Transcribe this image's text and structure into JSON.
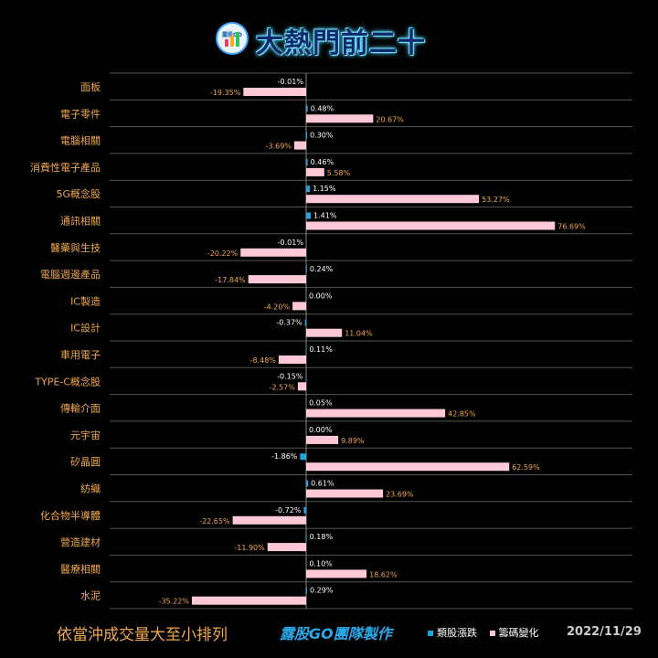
{
  "header": {
    "title": "大熱門前二十",
    "logo_text": "露股GO"
  },
  "footer": {
    "note": "依當沖成交量大至小排列",
    "credit": "露股GO團隊製作",
    "date": "2022/11/29"
  },
  "colors": {
    "series1": "#1ea8e0",
    "series2": "#ffc8d6",
    "label1": "#ffffff",
    "label2": "#f0a850",
    "grid": "#555555"
  },
  "chart_data": {
    "type": "bar",
    "orientation": "horizontal",
    "categories": [
      "面板",
      "電子零件",
      "電腦相關",
      "消費性電子產品",
      "5G概念股",
      "通訊相關",
      "醫藥與生技",
      "電腦週邊產品",
      "IC製造",
      "IC設計",
      "車用電子",
      "TYPE-C概念股",
      "傳輸介面",
      "元宇宙",
      "矽晶圓",
      "紡織",
      "化合物半導體",
      "營造建材",
      "醫療相關",
      "水泥"
    ],
    "series": [
      {
        "name": "類股漲跌",
        "values": [
          -0.01,
          0.48,
          0.3,
          0.46,
          1.15,
          1.41,
          -0.01,
          0.24,
          0.0,
          -0.37,
          0.11,
          -0.15,
          0.05,
          0.0,
          -1.86,
          0.61,
          -0.72,
          0.18,
          0.1,
          0.29
        ]
      },
      {
        "name": "籌碼變化",
        "values": [
          -19.35,
          20.67,
          -3.69,
          5.58,
          53.27,
          76.69,
          -20.22,
          -17.84,
          -4.2,
          11.04,
          -8.48,
          -2.57,
          42.85,
          9.89,
          62.59,
          23.69,
          -22.65,
          -11.9,
          18.62,
          -35.22
        ]
      }
    ],
    "value_labels": {
      "series1": [
        "-0.01%",
        "0.48%",
        "0.30%",
        "0.46%",
        "1.15%",
        "1.41%",
        "-0.01%",
        "0.24%",
        "0.00%",
        "-0.37%",
        "0.11%",
        "-0.15%",
        "0.05%",
        "0.00%",
        "-1.86%",
        "0.61%",
        "-0.72%",
        "0.18%",
        "0.10%",
        "0.29%"
      ],
      "series2": [
        "-19.35%",
        "20.67%",
        "-3.69%",
        "5.58%",
        "53.27%",
        "76.69%",
        "-20.22%",
        "-17.84%",
        "-4.20%",
        "11.04%",
        "-8.48%",
        "-2.57%",
        "42.85%",
        "9.89%",
        "62.59%",
        "23.69%",
        "-22.65%",
        "-11.90%",
        "18.62%",
        "-35.22%"
      ]
    },
    "legend_position": "bottom-right",
    "grid": true
  }
}
